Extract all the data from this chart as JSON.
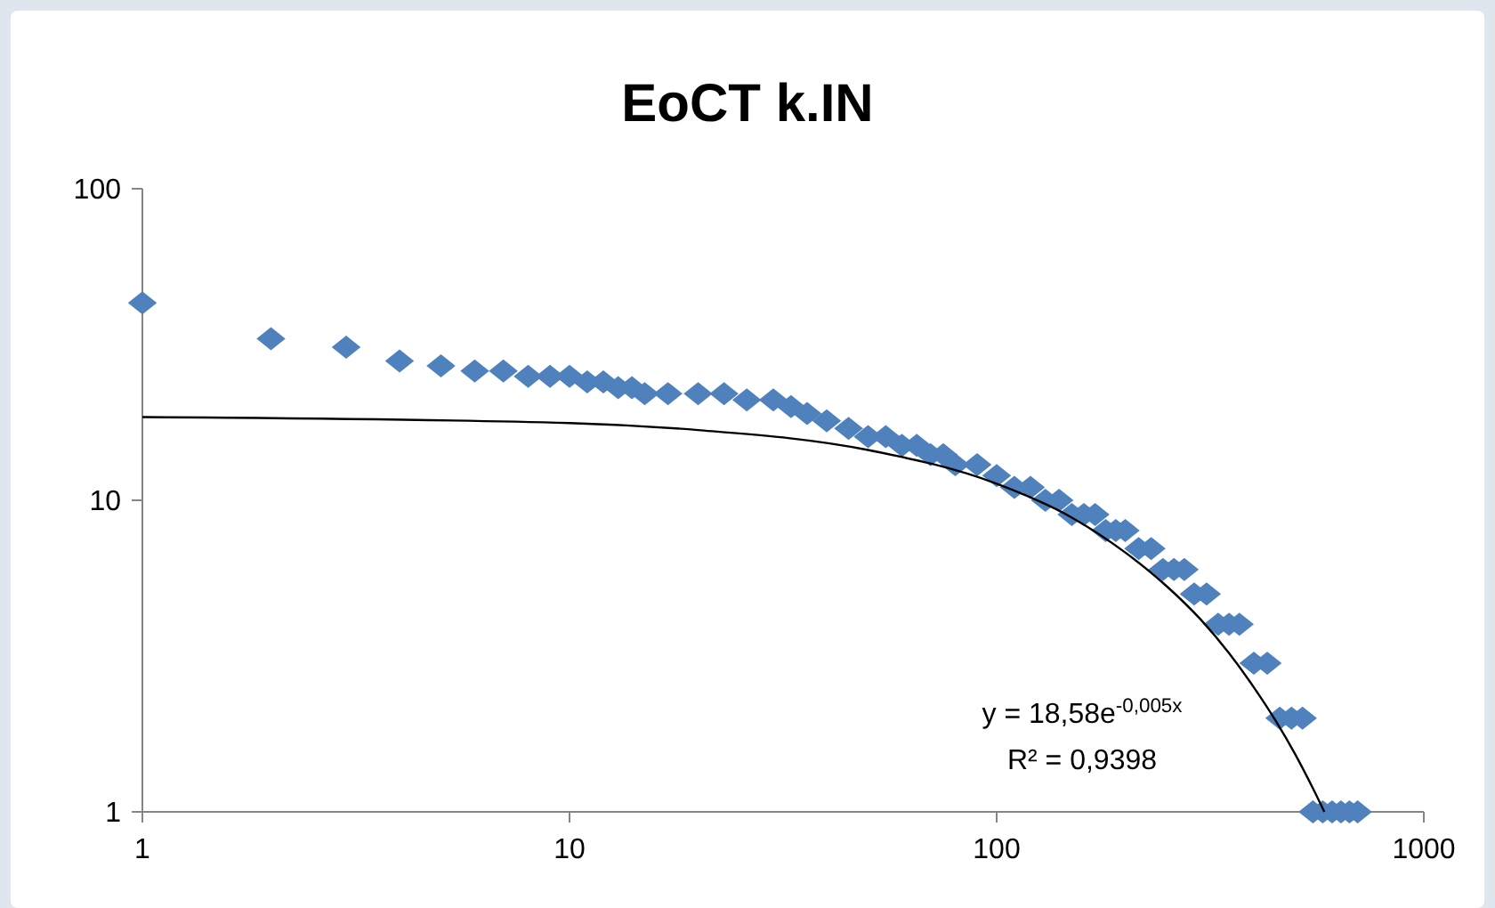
{
  "chart_data": {
    "type": "scatter",
    "title": "EoCT k.IN",
    "log": "xy",
    "xlim": [
      1,
      1000
    ],
    "ylim": [
      1,
      100
    ],
    "xticks": [
      1,
      10,
      100,
      1000
    ],
    "yticks": [
      1,
      10,
      100
    ],
    "grid": false,
    "marker": "diamond",
    "series": [
      {
        "color": "#4f81bd",
        "x": [
          1,
          2,
          3,
          4,
          5,
          6,
          7,
          8,
          9,
          10,
          11,
          12,
          13,
          14,
          15,
          17,
          20,
          23,
          26,
          30,
          33,
          36,
          40,
          45,
          50,
          55,
          60,
          65,
          70,
          75,
          80,
          90,
          100,
          110,
          120,
          130,
          140,
          150,
          160,
          170,
          180,
          190,
          200,
          215,
          230,
          245,
          260,
          275,
          290,
          310,
          330,
          350,
          370,
          400,
          430,
          460,
          490,
          520,
          550,
          580,
          610,
          640,
          670,
          700
        ],
        "values": [
          43,
          33,
          31,
          28,
          27,
          26,
          26,
          25,
          25,
          25,
          24,
          24,
          23,
          23,
          22,
          22,
          22,
          22,
          21,
          21,
          20,
          19,
          18,
          17,
          16,
          16,
          15,
          15,
          14,
          14,
          13,
          13,
          12,
          11,
          11,
          10,
          10,
          9,
          9,
          9,
          8,
          8,
          8,
          7,
          7,
          6,
          6,
          6,
          5,
          5,
          4,
          4,
          4,
          3,
          3,
          2,
          2,
          2,
          1,
          1,
          1,
          1,
          1,
          1
        ]
      },
      {
        "type": "line",
        "color": "#000000",
        "line_style": "solid",
        "marker": "none",
        "x": [
          1,
          10,
          20,
          50,
          100,
          150,
          200,
          250,
          300,
          350,
          400,
          450,
          500,
          550,
          585
        ],
        "values": [
          18.5,
          17.7,
          16.8,
          14.5,
          11.3,
          8.8,
          6.8,
          5.3,
          4.15,
          3.23,
          2.51,
          1.96,
          1.53,
          1.19,
          1.0
        ]
      }
    ],
    "annotations": [
      "y = 18,58e$^{-0,005x}$",
      "R² = 0,9398"
    ]
  }
}
